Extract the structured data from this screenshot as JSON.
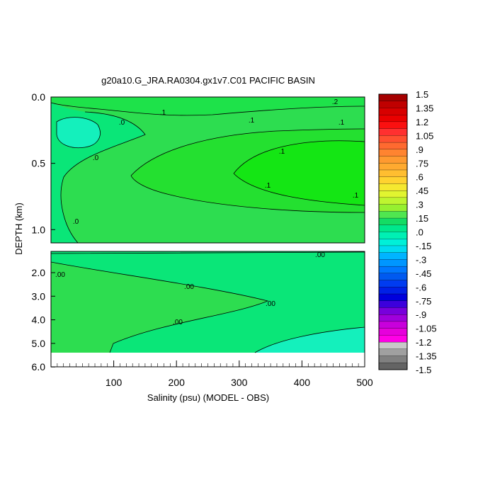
{
  "chart_data": {
    "type": "contour",
    "title": "g20a10.G_JRA.RA0304.gx1v7.C01 PACIFIC BASIN",
    "xlabel": "Salinity (psu) (MODEL - OBS)",
    "ylabel": "DEPTH (km)",
    "x_ticks": [
      "100",
      "200",
      "300",
      "400",
      "500"
    ],
    "xlim": [
      0,
      500
    ],
    "upper_panel": {
      "ylim": [
        0.0,
        1.1
      ],
      "y_ticks": [
        "0.0",
        "0.5",
        "1.0"
      ],
      "contour_labels": [
        ".2",
        ".1",
        ".1",
        ".1",
        ".0",
        ".0",
        ".1",
        ".1",
        ".1",
        ".0"
      ]
    },
    "lower_panel": {
      "ylim": [
        1.1,
        6.0
      ],
      "y_ticks": [
        "2.0",
        "3.0",
        "4.0",
        "5.0",
        "6.0"
      ],
      "contour_labels": [
        ".00",
        ".00",
        ".00",
        ".00",
        ".00"
      ]
    },
    "colorbar": {
      "labels": [
        "1.5",
        "1.35",
        "1.2",
        "1.05",
        ".9",
        ".75",
        ".6",
        ".45",
        ".3",
        ".15",
        ".0",
        "-.15",
        "-.3",
        "-.45",
        "-.6",
        "-.75",
        "-.9",
        "-1.05",
        "-1.2",
        "-1.35",
        "-1.5"
      ],
      "colors": [
        "#a50000",
        "#c00000",
        "#d80000",
        "#ea0000",
        "#fa1010",
        "#ff3030",
        "#ff5030",
        "#ff6a30",
        "#ff8430",
        "#ff9a30",
        "#ffaa30",
        "#ffbe30",
        "#ffd230",
        "#f5e830",
        "#e1f530",
        "#bef530",
        "#96f030",
        "#50e650",
        "#14dc64",
        "#00e88c",
        "#00f0b4",
        "#00f0d8",
        "#00dcf0",
        "#00b4ff",
        "#0096ff",
        "#0078ff",
        "#005af0",
        "#003cf0",
        "#0020e6",
        "#0000dc",
        "#3c00dc",
        "#7800dc",
        "#a000dc",
        "#c800dc",
        "#e600dc",
        "#ff00e6",
        "#c8c8c8",
        "#a0a0a0",
        "#808080",
        "#646464"
      ],
      "regions": {
        "positive_green": "#2ddd50",
        "near_zero": "#0ae678",
        "negative_cyan": "#14f0bc",
        "strong_green": "#14e614"
      }
    }
  }
}
